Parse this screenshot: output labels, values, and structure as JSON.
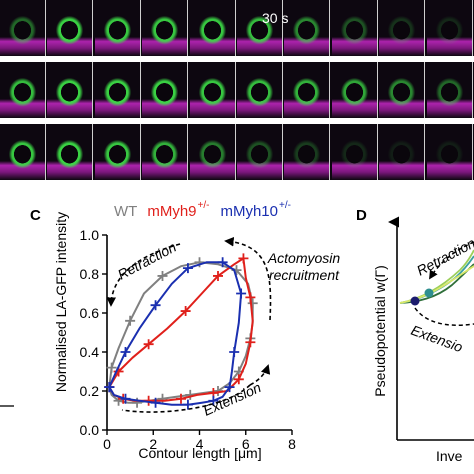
{
  "top": {
    "timestamp": "30 s",
    "rows": [
      {
        "name": "row-1",
        "green_strength": [
          0.45,
          0.95,
          0.9,
          0.9,
          0.9,
          0.85,
          0.6,
          0.35,
          0.2,
          0.15
        ]
      },
      {
        "name": "row-2",
        "green_strength": [
          0.85,
          0.95,
          0.95,
          0.95,
          0.9,
          0.85,
          0.8,
          0.75,
          0.6,
          0.45
        ]
      },
      {
        "name": "row-3",
        "green_strength": [
          0.9,
          0.95,
          0.9,
          0.8,
          0.55,
          0.35,
          0.25,
          0.15,
          0.1,
          0.1
        ]
      }
    ]
  },
  "panel_c": {
    "label": "C",
    "legend": [
      {
        "text": "WT",
        "sup": "",
        "color": "#808080"
      },
      {
        "text": "mMyh9",
        "sup": "+/-",
        "color": "#e0201b"
      },
      {
        "text": "mMyh10",
        "sup": "+/-",
        "color": "#1a2fb0"
      }
    ],
    "annotations": {
      "retraction": "Retraction",
      "actomyosin_line1": "Actomyosin",
      "actomyosin_line2": "recruitment",
      "extension": "Extension"
    }
  },
  "panel_d": {
    "label": "D",
    "ylabel": "Pseudopotential w(Γ)",
    "xlabel": "Inve",
    "retraction": "Retraction",
    "extension": "Extensio"
  },
  "chart_data": {
    "type": "line",
    "title": "",
    "xlabel": "Contour length [μm]",
    "ylabel": "Normalised LA-GFP intensity",
    "xlim": [
      0,
      8
    ],
    "ylim": [
      0,
      1.0
    ],
    "xticks": [
      "0",
      "2",
      "4",
      "6",
      "8"
    ],
    "yticks": [
      "0.0",
      "0.2",
      "0.4",
      "0.6",
      "0.8",
      "1.0"
    ],
    "grid": false,
    "legend_position": "top",
    "series": [
      {
        "name": "WT",
        "color": "#808080",
        "x": [
          0.1,
          0.2,
          0.5,
          0.9,
          1.3,
          1.8,
          2.4,
          3.0,
          3.6,
          4.2,
          4.8,
          5.3,
          5.7,
          6.0,
          6.2,
          6.3,
          6.3,
          6.1,
          5.6,
          4.8,
          4.0,
          3.2,
          2.4,
          1.6,
          1.0,
          0.5,
          0.2,
          0.1
        ],
        "y": [
          0.22,
          0.18,
          0.15,
          0.14,
          0.14,
          0.15,
          0.16,
          0.17,
          0.18,
          0.19,
          0.2,
          0.24,
          0.3,
          0.38,
          0.47,
          0.55,
          0.65,
          0.75,
          0.82,
          0.85,
          0.86,
          0.84,
          0.79,
          0.7,
          0.56,
          0.42,
          0.32,
          0.22
        ]
      },
      {
        "name": "mMyh9+/-",
        "color": "#e0201b",
        "x": [
          0.1,
          0.3,
          0.7,
          1.2,
          1.8,
          2.5,
          3.2,
          3.9,
          4.6,
          5.2,
          5.7,
          6.0,
          6.2,
          6.3,
          6.2,
          6.0,
          5.9,
          5.5,
          4.8,
          4.1,
          3.4,
          2.6,
          1.8,
          1.1,
          0.5,
          0.1
        ],
        "y": [
          0.22,
          0.18,
          0.16,
          0.15,
          0.15,
          0.15,
          0.16,
          0.18,
          0.19,
          0.2,
          0.26,
          0.34,
          0.45,
          0.56,
          0.68,
          0.78,
          0.88,
          0.85,
          0.79,
          0.7,
          0.61,
          0.52,
          0.44,
          0.37,
          0.3,
          0.22
        ]
      },
      {
        "name": "mMyh10+/-",
        "color": "#1a2fb0",
        "x": [
          0.1,
          0.3,
          0.8,
          1.4,
          2.1,
          2.8,
          3.5,
          4.1,
          4.6,
          5.0,
          5.3,
          5.4,
          5.5,
          5.7,
          5.8,
          5.5,
          5.0,
          4.3,
          3.5,
          2.8,
          2.1,
          1.4,
          0.8,
          0.4,
          0.1
        ],
        "y": [
          0.22,
          0.18,
          0.16,
          0.15,
          0.14,
          0.13,
          0.13,
          0.14,
          0.15,
          0.17,
          0.22,
          0.3,
          0.4,
          0.55,
          0.7,
          0.82,
          0.86,
          0.86,
          0.83,
          0.75,
          0.64,
          0.52,
          0.4,
          0.3,
          0.22
        ]
      }
    ]
  }
}
